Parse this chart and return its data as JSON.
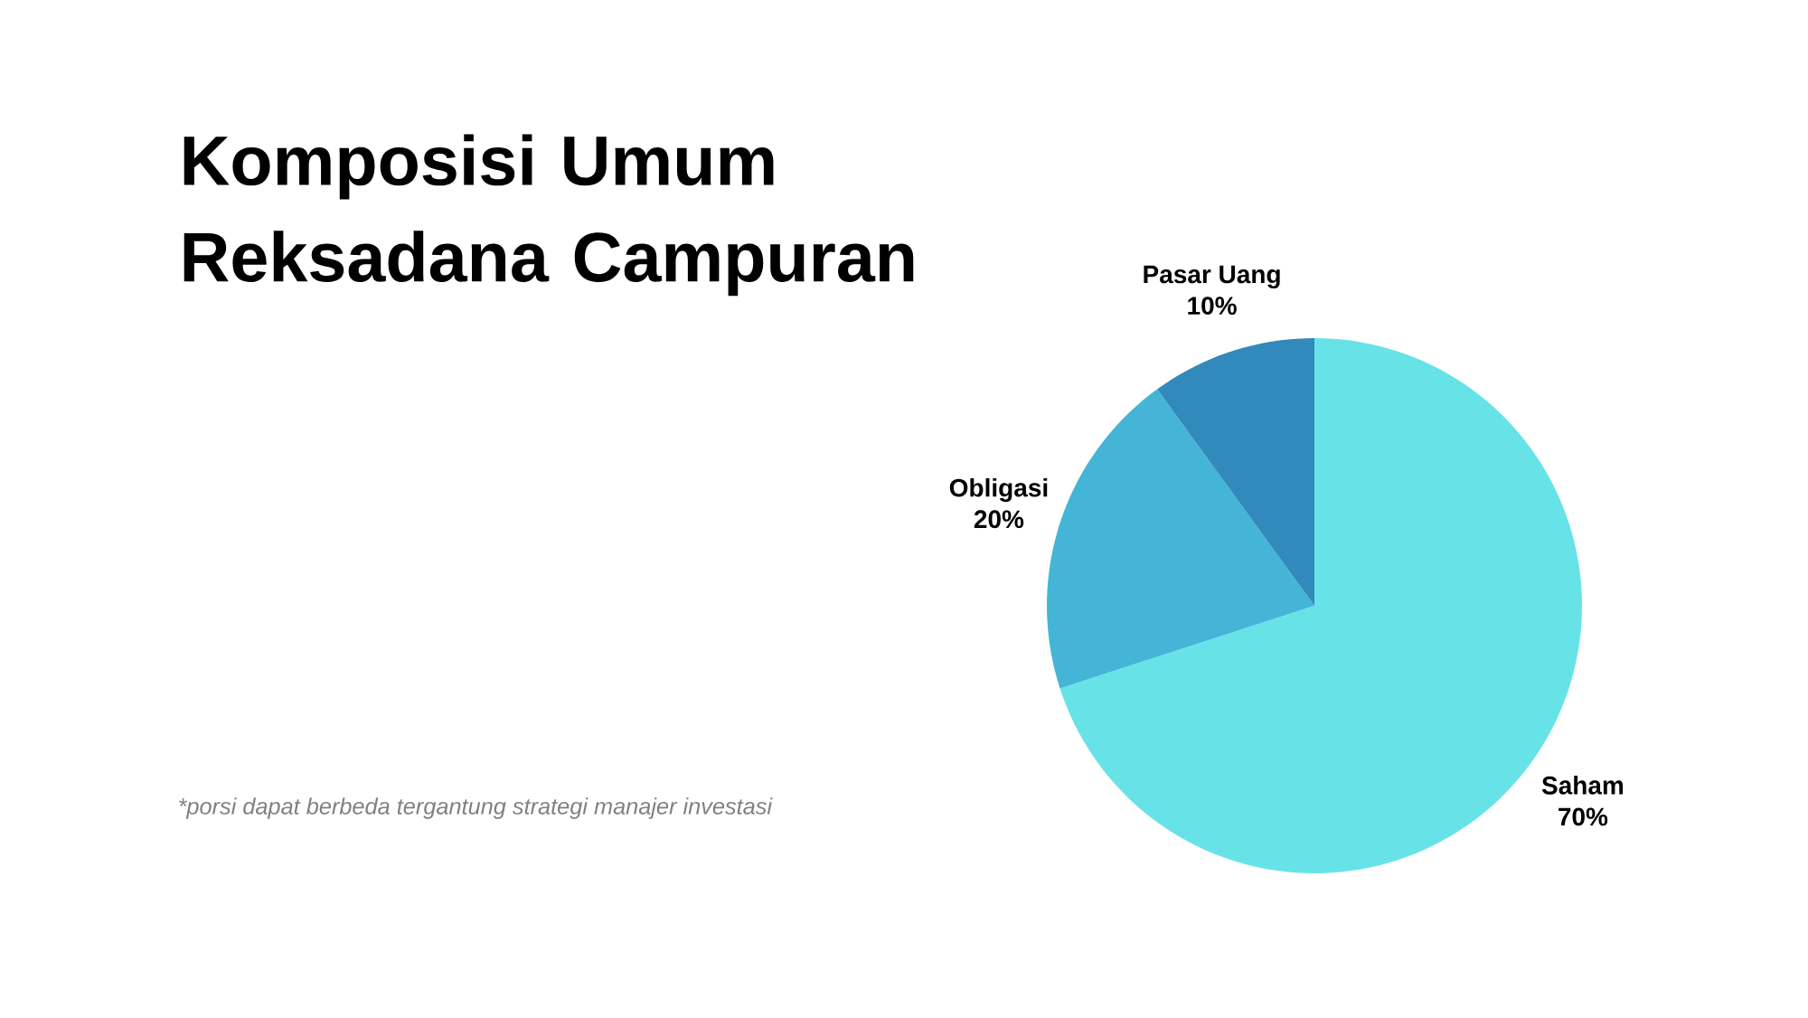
{
  "chart_data": {
    "type": "pie",
    "title": "Komposisi Umum Reksadana Campuran",
    "categories": [
      "Saham",
      "Obligasi",
      "Pasar Uang"
    ],
    "values": [
      70,
      20,
      10
    ],
    "value_labels": [
      "70%",
      "20%",
      "10%"
    ],
    "colors": [
      "#67e3e8",
      "#44b5d6",
      "#3289bb"
    ],
    "annotations": [
      "*porsi dapat berbeda tergantung strategi manajer investasi"
    ]
  }
}
